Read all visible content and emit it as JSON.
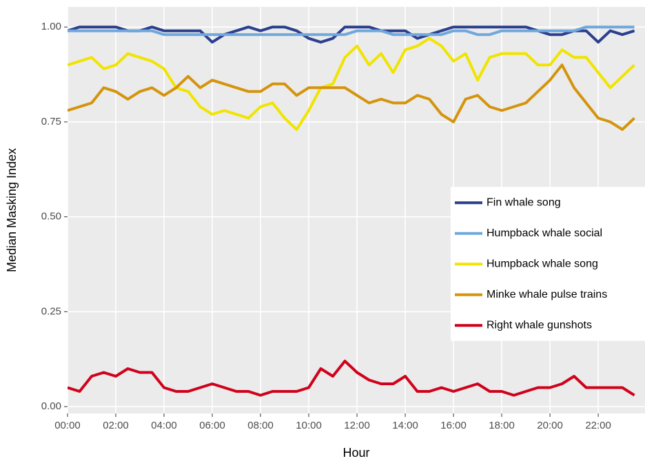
{
  "chart_data": {
    "type": "line",
    "x_label": "Hour",
    "y_label": "Median Masking Index",
    "x": [
      0,
      0.5,
      1,
      1.5,
      2,
      2.5,
      3,
      3.5,
      4,
      4.5,
      5,
      5.5,
      6,
      6.5,
      7,
      7.5,
      8,
      8.5,
      9,
      9.5,
      10,
      10.5,
      11,
      11.5,
      12,
      12.5,
      13,
      13.5,
      14,
      14.5,
      15,
      15.5,
      16,
      16.5,
      17,
      17.5,
      18,
      18.5,
      19,
      19.5,
      20,
      20.5,
      21,
      21.5,
      22,
      22.5,
      23,
      23.5
    ],
    "xlim": [
      0,
      23.94
    ],
    "xticks": [
      {
        "value": 0,
        "label": "00:00"
      },
      {
        "value": 2,
        "label": "02:00"
      },
      {
        "value": 4,
        "label": "04:00"
      },
      {
        "value": 6,
        "label": "06:00"
      },
      {
        "value": 8,
        "label": "08:00"
      },
      {
        "value": 10,
        "label": "10:00"
      },
      {
        "value": 12,
        "label": "12:00"
      },
      {
        "value": 14,
        "label": "14:00"
      },
      {
        "value": 16,
        "label": "16:00"
      },
      {
        "value": 18,
        "label": "18:00"
      },
      {
        "value": 20,
        "label": "20:00"
      },
      {
        "value": 22,
        "label": "22:00"
      }
    ],
    "ylim": [
      -0.018,
      1.053
    ],
    "yticks": [
      {
        "value": 0,
        "label": "0.00"
      },
      {
        "value": 0.25,
        "label": "0.25"
      },
      {
        "value": 0.5,
        "label": "0.50"
      },
      {
        "value": 0.75,
        "label": "0.75"
      },
      {
        "value": 1,
        "label": "1.00"
      }
    ],
    "grid": true,
    "legend_position": "right",
    "series": [
      {
        "name": "Fin whale song",
        "color": "#2b3f8e",
        "values": [
          0.99,
          1.0,
          1.0,
          1.0,
          1.0,
          0.99,
          0.99,
          1.0,
          0.99,
          0.99,
          0.99,
          0.99,
          0.96,
          0.98,
          0.99,
          1.0,
          0.99,
          1.0,
          1.0,
          0.99,
          0.97,
          0.96,
          0.97,
          1.0,
          1.0,
          1.0,
          0.99,
          0.99,
          0.99,
          0.97,
          0.98,
          0.99,
          1.0,
          1.0,
          1.0,
          1.0,
          1.0,
          1.0,
          1.0,
          0.99,
          0.98,
          0.98,
          0.99,
          0.99,
          0.96,
          0.99,
          0.98,
          0.99
        ]
      },
      {
        "name": "Humpback whale social",
        "color": "#6fa8dc",
        "values": [
          0.99,
          0.99,
          0.99,
          0.99,
          0.99,
          0.99,
          0.99,
          0.99,
          0.98,
          0.98,
          0.98,
          0.98,
          0.98,
          0.98,
          0.98,
          0.98,
          0.98,
          0.98,
          0.98,
          0.98,
          0.98,
          0.98,
          0.98,
          0.98,
          0.99,
          0.99,
          0.99,
          0.98,
          0.98,
          0.98,
          0.98,
          0.98,
          0.99,
          0.99,
          0.98,
          0.98,
          0.99,
          0.99,
          0.99,
          0.99,
          0.99,
          0.99,
          0.99,
          1.0,
          1.0,
          1.0,
          1.0,
          1.0
        ]
      },
      {
        "name": "Humpback whale song",
        "color": "#f0e400",
        "values": [
          0.9,
          0.91,
          0.92,
          0.89,
          0.9,
          0.93,
          0.92,
          0.91,
          0.89,
          0.84,
          0.83,
          0.79,
          0.77,
          0.78,
          0.77,
          0.76,
          0.79,
          0.8,
          0.76,
          0.73,
          0.78,
          0.84,
          0.85,
          0.92,
          0.95,
          0.9,
          0.93,
          0.88,
          0.94,
          0.95,
          0.97,
          0.95,
          0.91,
          0.93,
          0.86,
          0.92,
          0.93,
          0.93,
          0.93,
          0.9,
          0.9,
          0.94,
          0.92,
          0.92,
          0.88,
          0.84,
          0.87,
          0.9
        ]
      },
      {
        "name": "Minke whale pulse trains",
        "color": "#d4940c",
        "values": [
          0.78,
          0.79,
          0.8,
          0.84,
          0.83,
          0.81,
          0.83,
          0.84,
          0.82,
          0.84,
          0.87,
          0.84,
          0.86,
          0.85,
          0.84,
          0.83,
          0.83,
          0.85,
          0.85,
          0.82,
          0.84,
          0.84,
          0.84,
          0.84,
          0.82,
          0.8,
          0.81,
          0.8,
          0.8,
          0.82,
          0.81,
          0.77,
          0.75,
          0.81,
          0.82,
          0.79,
          0.78,
          0.79,
          0.8,
          0.83,
          0.86,
          0.9,
          0.84,
          0.8,
          0.76,
          0.75,
          0.73,
          0.76
        ]
      },
      {
        "name": "Right whale gunshots",
        "color": "#d0021b",
        "values": [
          0.05,
          0.04,
          0.08,
          0.09,
          0.08,
          0.1,
          0.09,
          0.09,
          0.05,
          0.04,
          0.04,
          0.05,
          0.06,
          0.05,
          0.04,
          0.04,
          0.03,
          0.04,
          0.04,
          0.04,
          0.05,
          0.1,
          0.08,
          0.12,
          0.09,
          0.07,
          0.06,
          0.06,
          0.08,
          0.04,
          0.04,
          0.05,
          0.04,
          0.05,
          0.06,
          0.04,
          0.04,
          0.03,
          0.04,
          0.05,
          0.05,
          0.06,
          0.08,
          0.05,
          0.05,
          0.05,
          0.05,
          0.03
        ]
      }
    ]
  }
}
